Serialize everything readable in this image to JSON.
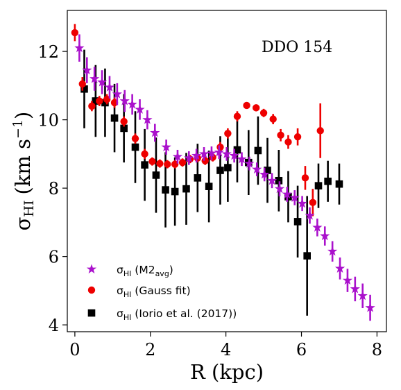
{
  "chart_data": {
    "type": "scatter",
    "annotation": "DDO 154",
    "xlabel": "R (kpc)",
    "ylabel": {
      "main": "σ",
      "sub": "HI",
      "unit": "(km s",
      "sup": "−1",
      "close": ")"
    },
    "xlim": [
      -0.2,
      8.25
    ],
    "ylim": [
      3.8,
      13.2
    ],
    "xticks": [
      0,
      2,
      4,
      6,
      8
    ],
    "yticks": [
      4,
      6,
      8,
      10,
      12
    ],
    "grid": false,
    "legend_position": "bottom-left",
    "series": [
      {
        "key": "m2",
        "legend": {
          "main": "σ",
          "sub": "HI",
          "rest": " (M2",
          "rest_sub": "avg",
          "close": ")"
        },
        "color": "#aa11cc",
        "marker": "star",
        "points": [
          {
            "x": 0.12,
            "y": 12.1,
            "err": 0.4
          },
          {
            "x": 0.32,
            "y": 11.45,
            "err": 0.38
          },
          {
            "x": 0.52,
            "y": 11.2,
            "err": 0.35
          },
          {
            "x": 0.72,
            "y": 11.1,
            "err": 0.35
          },
          {
            "x": 0.92,
            "y": 10.95,
            "err": 0.33
          },
          {
            "x": 1.12,
            "y": 10.75,
            "err": 0.32
          },
          {
            "x": 1.32,
            "y": 10.55,
            "err": 0.32
          },
          {
            "x": 1.52,
            "y": 10.45,
            "err": 0.3
          },
          {
            "x": 1.72,
            "y": 10.3,
            "err": 0.3
          },
          {
            "x": 1.92,
            "y": 10.0,
            "err": 0.28
          },
          {
            "x": 2.12,
            "y": 9.62,
            "err": 0.26
          },
          {
            "x": 2.42,
            "y": 9.2,
            "err": 0.22
          },
          {
            "x": 2.72,
            "y": 8.92,
            "err": 0.2
          },
          {
            "x": 3.02,
            "y": 8.88,
            "err": 0.2
          },
          {
            "x": 3.22,
            "y": 8.95,
            "err": 0.2
          },
          {
            "x": 3.42,
            "y": 9.0,
            "err": 0.2
          },
          {
            "x": 3.62,
            "y": 9.02,
            "err": 0.2
          },
          {
            "x": 3.82,
            "y": 9.05,
            "err": 0.2
          },
          {
            "x": 4.02,
            "y": 9.0,
            "err": 0.2
          },
          {
            "x": 4.22,
            "y": 8.95,
            "err": 0.2
          },
          {
            "x": 4.42,
            "y": 8.85,
            "err": 0.2
          },
          {
            "x": 4.62,
            "y": 8.72,
            "err": 0.2
          },
          {
            "x": 4.82,
            "y": 8.55,
            "err": 0.2
          },
          {
            "x": 5.02,
            "y": 8.4,
            "err": 0.2
          },
          {
            "x": 5.22,
            "y": 8.22,
            "err": 0.22
          },
          {
            "x": 5.42,
            "y": 7.98,
            "err": 0.22
          },
          {
            "x": 5.62,
            "y": 7.82,
            "err": 0.22
          },
          {
            "x": 5.82,
            "y": 7.72,
            "err": 0.22
          },
          {
            "x": 6.02,
            "y": 7.55,
            "err": 0.22
          },
          {
            "x": 6.22,
            "y": 7.2,
            "err": 0.24
          },
          {
            "x": 6.42,
            "y": 6.85,
            "err": 0.26
          },
          {
            "x": 6.62,
            "y": 6.6,
            "err": 0.28
          },
          {
            "x": 6.82,
            "y": 6.15,
            "err": 0.3
          },
          {
            "x": 7.02,
            "y": 5.65,
            "err": 0.32
          },
          {
            "x": 7.22,
            "y": 5.3,
            "err": 0.34
          },
          {
            "x": 7.42,
            "y": 5.05,
            "err": 0.36
          },
          {
            "x": 7.62,
            "y": 4.85,
            "err": 0.36
          },
          {
            "x": 7.82,
            "y": 4.5,
            "err": 0.38
          }
        ]
      },
      {
        "key": "gauss",
        "legend": {
          "main": "σ",
          "sub": "HI",
          "rest": " (Gauss fit)",
          "rest_sub": "",
          "close": ""
        },
        "color": "#ee0000",
        "marker": "circle",
        "points": [
          {
            "x": 0.0,
            "y": 12.55,
            "err": 0.25
          },
          {
            "x": 0.2,
            "y": 11.05,
            "err": 0.2
          },
          {
            "x": 0.45,
            "y": 10.4,
            "err": 0.15
          },
          {
            "x": 0.65,
            "y": 10.55,
            "err": 0.15
          },
          {
            "x": 0.85,
            "y": 10.6,
            "err": 0.15
          },
          {
            "x": 1.05,
            "y": 10.5,
            "err": 0.15
          },
          {
            "x": 1.3,
            "y": 9.95,
            "err": 0.15
          },
          {
            "x": 1.6,
            "y": 9.45,
            "err": 0.15
          },
          {
            "x": 1.85,
            "y": 9.0,
            "err": 0.15
          },
          {
            "x": 2.05,
            "y": 8.78,
            "err": 0.12
          },
          {
            "x": 2.25,
            "y": 8.72,
            "err": 0.12
          },
          {
            "x": 2.45,
            "y": 8.7,
            "err": 0.12
          },
          {
            "x": 2.65,
            "y": 8.7,
            "err": 0.12
          },
          {
            "x": 2.85,
            "y": 8.75,
            "err": 0.12
          },
          {
            "x": 3.05,
            "y": 8.85,
            "err": 0.12
          },
          {
            "x": 3.25,
            "y": 8.88,
            "err": 0.12
          },
          {
            "x": 3.45,
            "y": 8.8,
            "err": 0.12
          },
          {
            "x": 3.65,
            "y": 8.9,
            "err": 0.12
          },
          {
            "x": 3.85,
            "y": 9.2,
            "err": 0.15
          },
          {
            "x": 4.05,
            "y": 9.6,
            "err": 0.15
          },
          {
            "x": 4.3,
            "y": 10.1,
            "err": 0.15
          },
          {
            "x": 4.55,
            "y": 10.42,
            "err": 0.1
          },
          {
            "x": 4.8,
            "y": 10.35,
            "err": 0.1
          },
          {
            "x": 5.0,
            "y": 10.2,
            "err": 0.12
          },
          {
            "x": 5.25,
            "y": 10.02,
            "err": 0.15
          },
          {
            "x": 5.45,
            "y": 9.55,
            "err": 0.18
          },
          {
            "x": 5.65,
            "y": 9.35,
            "err": 0.2
          },
          {
            "x": 5.9,
            "y": 9.5,
            "err": 0.25
          },
          {
            "x": 6.1,
            "y": 8.3,
            "err": 0.35
          },
          {
            "x": 6.3,
            "y": 7.58,
            "err": 0.4
          },
          {
            "x": 6.5,
            "y": 9.68,
            "err": 0.8
          }
        ]
      },
      {
        "key": "iorio",
        "legend": {
          "main": "σ",
          "sub": "HI",
          "rest": " (Iorio et al.  (2017))",
          "rest_sub": "",
          "close": ""
        },
        "color": "#000000",
        "marker": "square",
        "points": [
          {
            "x": 0.25,
            "y": 10.9,
            "err": 1.15
          },
          {
            "x": 0.55,
            "y": 10.55,
            "err": 1.05
          },
          {
            "x": 0.8,
            "y": 10.5,
            "err": 1.0
          },
          {
            "x": 1.05,
            "y": 10.05,
            "err": 1.0
          },
          {
            "x": 1.3,
            "y": 9.75,
            "err": 1.0
          },
          {
            "x": 1.6,
            "y": 9.2,
            "err": 1.05
          },
          {
            "x": 1.85,
            "y": 8.68,
            "err": 1.05
          },
          {
            "x": 2.15,
            "y": 8.38,
            "err": 1.1
          },
          {
            "x": 2.4,
            "y": 7.95,
            "err": 1.1
          },
          {
            "x": 2.65,
            "y": 7.9,
            "err": 1.0
          },
          {
            "x": 2.95,
            "y": 7.98,
            "err": 1.05
          },
          {
            "x": 3.25,
            "y": 8.3,
            "err": 1.0
          },
          {
            "x": 3.55,
            "y": 8.05,
            "err": 1.05
          },
          {
            "x": 3.85,
            "y": 8.52,
            "err": 1.0
          },
          {
            "x": 4.05,
            "y": 8.6,
            "err": 1.0
          },
          {
            "x": 4.3,
            "y": 9.12,
            "err": 0.95
          },
          {
            "x": 4.6,
            "y": 8.75,
            "err": 0.95
          },
          {
            "x": 4.85,
            "y": 9.1,
            "err": 1.0
          },
          {
            "x": 5.1,
            "y": 8.52,
            "err": 0.95
          },
          {
            "x": 5.4,
            "y": 8.22,
            "err": 0.9
          },
          {
            "x": 5.65,
            "y": 7.75,
            "err": 0.75
          },
          {
            "x": 5.9,
            "y": 7.02,
            "err": 1.05
          },
          {
            "x": 6.15,
            "y": 6.02,
            "err": 1.75
          },
          {
            "x": 6.45,
            "y": 8.07,
            "err": 0.65
          },
          {
            "x": 6.7,
            "y": 8.2,
            "err": 0.6
          },
          {
            "x": 7.0,
            "y": 8.12,
            "err": 0.6
          }
        ]
      }
    ]
  }
}
